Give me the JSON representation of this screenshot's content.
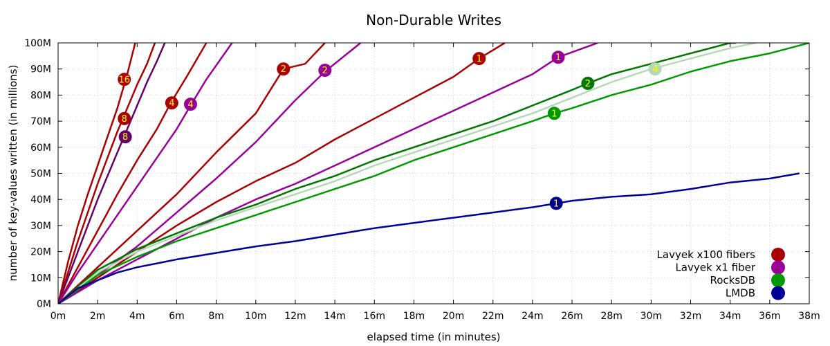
{
  "chart_data": {
    "type": "line",
    "title": "Non-Durable Writes",
    "xlabel": "elapsed time (in minutes)",
    "ylabel": "number of key-values written (in millions)",
    "xlim": [
      0,
      38
    ],
    "ylim": [
      0,
      100
    ],
    "grid": true,
    "legend_position": "bottom-right",
    "x_ticks": [
      {
        "v": 0,
        "label": "0m"
      },
      {
        "v": 2,
        "label": "2m"
      },
      {
        "v": 4,
        "label": "4m"
      },
      {
        "v": 6,
        "label": "6m"
      },
      {
        "v": 8,
        "label": "8m"
      },
      {
        "v": 10,
        "label": "10m"
      },
      {
        "v": 12,
        "label": "12m"
      },
      {
        "v": 14,
        "label": "14m"
      },
      {
        "v": 16,
        "label": "16m"
      },
      {
        "v": 18,
        "label": "18m"
      },
      {
        "v": 20,
        "label": "20m"
      },
      {
        "v": 22,
        "label": "22m"
      },
      {
        "v": 24,
        "label": "24m"
      },
      {
        "v": 26,
        "label": "26m"
      },
      {
        "v": 28,
        "label": "28m"
      },
      {
        "v": 30,
        "label": "30m"
      },
      {
        "v": 32,
        "label": "32m"
      },
      {
        "v": 34,
        "label": "34m"
      },
      {
        "v": 36,
        "label": "36m"
      },
      {
        "v": 38,
        "label": "38m"
      }
    ],
    "y_ticks": [
      {
        "v": 0,
        "label": "0M"
      },
      {
        "v": 10,
        "label": "10M"
      },
      {
        "v": 20,
        "label": "20M"
      },
      {
        "v": 30,
        "label": "30M"
      },
      {
        "v": 40,
        "label": "40M"
      },
      {
        "v": 50,
        "label": "50M"
      },
      {
        "v": 60,
        "label": "60M"
      },
      {
        "v": 70,
        "label": "70M"
      },
      {
        "v": 80,
        "label": "80M"
      },
      {
        "v": 90,
        "label": "90M"
      },
      {
        "v": 100,
        "label": "100M"
      }
    ],
    "legend": [
      {
        "name": "Lavyek x100 fibers",
        "color": "#aa0000"
      },
      {
        "name": "Lavyek x1 fiber",
        "color": "#990099"
      },
      {
        "name": "RocksDB",
        "color": "#009900"
      },
      {
        "name": "LMDB",
        "color": "#000099"
      }
    ],
    "series": [
      {
        "group": "Lavyek x100 fibers",
        "label": "16",
        "color": "#aa0000",
        "points": [
          [
            0,
            0
          ],
          [
            0.5,
            16
          ],
          [
            1,
            30
          ],
          [
            1.5,
            42
          ],
          [
            2,
            53
          ],
          [
            2.5,
            64
          ],
          [
            3,
            75
          ],
          [
            3.5,
            88
          ],
          [
            3.9,
            100
          ]
        ],
        "marker": [
          3.35,
          86
        ]
      },
      {
        "group": "Lavyek x100 fibers",
        "label": "8",
        "color": "#aa0000",
        "points": [
          [
            0,
            0
          ],
          [
            1,
            24
          ],
          [
            2,
            46
          ],
          [
            3,
            66
          ],
          [
            3.5,
            75
          ],
          [
            4,
            84
          ],
          [
            4.5,
            92
          ],
          [
            4.9,
            100
          ]
        ],
        "marker": [
          3.35,
          71
        ]
      },
      {
        "group": "Lavyek x100 fibers",
        "label": "8",
        "color": "#660066",
        "points": [
          [
            0,
            0
          ],
          [
            1,
            20
          ],
          [
            2,
            40
          ],
          [
            3,
            58
          ],
          [
            3.5,
            67
          ],
          [
            4,
            76
          ],
          [
            4.5,
            85
          ],
          [
            5,
            93
          ],
          [
            5.4,
            100
          ]
        ],
        "marker": [
          3.4,
          64
        ]
      },
      {
        "group": "Lavyek x100 fibers",
        "label": "4",
        "color": "#aa0000",
        "points": [
          [
            0,
            0
          ],
          [
            1,
            14
          ],
          [
            2,
            28
          ],
          [
            3,
            42
          ],
          [
            4,
            55
          ],
          [
            5,
            67
          ],
          [
            5.7,
            77
          ],
          [
            6.5,
            87
          ],
          [
            7.5,
            100
          ]
        ],
        "marker": [
          5.75,
          77
        ]
      },
      {
        "group": "Lavyek x1 fiber",
        "label": "4",
        "color": "#990099",
        "points": [
          [
            0,
            0
          ],
          [
            1,
            12
          ],
          [
            2,
            23
          ],
          [
            3,
            34
          ],
          [
            4,
            45
          ],
          [
            5,
            56
          ],
          [
            6,
            67
          ],
          [
            6.7,
            76
          ],
          [
            7.5,
            86
          ],
          [
            8.8,
            100
          ]
        ],
        "marker": [
          6.7,
          76.5
        ]
      },
      {
        "group": "Lavyek x100 fibers",
        "label": "2",
        "color": "#aa0000",
        "points": [
          [
            0,
            0
          ],
          [
            2,
            14
          ],
          [
            4,
            28
          ],
          [
            6,
            42
          ],
          [
            8,
            58
          ],
          [
            10,
            73
          ],
          [
            11.4,
            90
          ],
          [
            12.5,
            92
          ],
          [
            13.5,
            100
          ]
        ],
        "marker": [
          11.4,
          90
        ]
      },
      {
        "group": "Lavyek x1 fiber",
        "label": "2",
        "color": "#990099",
        "points": [
          [
            0,
            0
          ],
          [
            2,
            11
          ],
          [
            4,
            22
          ],
          [
            6,
            35
          ],
          [
            8,
            48
          ],
          [
            10,
            62
          ],
          [
            12,
            78
          ],
          [
            13.5,
            89
          ],
          [
            15.3,
            100
          ]
        ],
        "marker": [
          13.5,
          89.5
        ]
      },
      {
        "group": "Lavyek x100 fibers",
        "label": "1",
        "color": "#aa0000",
        "points": [
          [
            0,
            0
          ],
          [
            2,
            10
          ],
          [
            4,
            20
          ],
          [
            6,
            30
          ],
          [
            8,
            39
          ],
          [
            10,
            47
          ],
          [
            12,
            54
          ],
          [
            14,
            63
          ],
          [
            16,
            71
          ],
          [
            18,
            79
          ],
          [
            20,
            87
          ],
          [
            21.3,
            94
          ],
          [
            22.6,
            100
          ]
        ],
        "marker": [
          21.3,
          94
        ]
      },
      {
        "group": "Lavyek x1 fiber",
        "label": "1",
        "color": "#990099",
        "points": [
          [
            0,
            0
          ],
          [
            2,
            9
          ],
          [
            4,
            17
          ],
          [
            6,
            25
          ],
          [
            8,
            33
          ],
          [
            10,
            40
          ],
          [
            12,
            46
          ],
          [
            14,
            53
          ],
          [
            16,
            60
          ],
          [
            18,
            67
          ],
          [
            20,
            74
          ],
          [
            22,
            81
          ],
          [
            24,
            88
          ],
          [
            25.3,
            94.5
          ],
          [
            27.3,
            100
          ]
        ],
        "marker": [
          25.3,
          94.5
        ]
      },
      {
        "group": "RocksDB",
        "label": "2",
        "color": "#007700",
        "points": [
          [
            0,
            0
          ],
          [
            2,
            13
          ],
          [
            4,
            21
          ],
          [
            6,
            27
          ],
          [
            8,
            33
          ],
          [
            10,
            38
          ],
          [
            12,
            44
          ],
          [
            14,
            49
          ],
          [
            16,
            55
          ],
          [
            18,
            60
          ],
          [
            20,
            65
          ],
          [
            22,
            70
          ],
          [
            24,
            76
          ],
          [
            26,
            82
          ],
          [
            26.8,
            84.5
          ],
          [
            28,
            88
          ],
          [
            30,
            92
          ],
          [
            32,
            96
          ],
          [
            34,
            100
          ],
          [
            34.3,
            100
          ]
        ],
        "marker": [
          26.8,
          84.5
        ]
      },
      {
        "group": "RocksDB",
        "label": "4",
        "color": "#b5d9b5",
        "points": [
          [
            0,
            0
          ],
          [
            2,
            12
          ],
          [
            4,
            20
          ],
          [
            6,
            26
          ],
          [
            8,
            32
          ],
          [
            10,
            37
          ],
          [
            12,
            42
          ],
          [
            14,
            47
          ],
          [
            16,
            53
          ],
          [
            18,
            58
          ],
          [
            20,
            63
          ],
          [
            22,
            68
          ],
          [
            24,
            73
          ],
          [
            26,
            79
          ],
          [
            28,
            85
          ],
          [
            30,
            90
          ],
          [
            32,
            94
          ],
          [
            34,
            98
          ],
          [
            35.3,
            100
          ]
        ],
        "marker": [
          30.2,
          90
        ]
      },
      {
        "group": "RocksDB",
        "label": "1",
        "color": "#009900",
        "points": [
          [
            0,
            0
          ],
          [
            2,
            11
          ],
          [
            4,
            18
          ],
          [
            6,
            24
          ],
          [
            8,
            29
          ],
          [
            10,
            34
          ],
          [
            12,
            39
          ],
          [
            14,
            44
          ],
          [
            16,
            49
          ],
          [
            18,
            55
          ],
          [
            20,
            60
          ],
          [
            22,
            65
          ],
          [
            24,
            70
          ],
          [
            25.1,
            73
          ],
          [
            26,
            75
          ],
          [
            28,
            80
          ],
          [
            30,
            84
          ],
          [
            32,
            89
          ],
          [
            34,
            93
          ],
          [
            36,
            96
          ],
          [
            38,
            100
          ]
        ],
        "marker": [
          25.1,
          73
        ]
      },
      {
        "group": "LMDB",
        "label": "1",
        "color": "#000099",
        "points": [
          [
            0,
            0
          ],
          [
            1,
            6
          ],
          [
            2,
            9
          ],
          [
            3,
            12
          ],
          [
            4,
            14
          ],
          [
            5,
            15.5
          ],
          [
            6,
            17
          ],
          [
            8,
            19.5
          ],
          [
            10,
            22
          ],
          [
            12,
            24
          ],
          [
            14,
            26.5
          ],
          [
            16,
            29
          ],
          [
            18,
            31
          ],
          [
            20,
            33
          ],
          [
            22,
            35
          ],
          [
            24,
            37
          ],
          [
            25.2,
            38.5
          ],
          [
            26,
            39.5
          ],
          [
            28,
            41
          ],
          [
            30,
            42
          ],
          [
            32,
            44
          ],
          [
            34,
            46.5
          ],
          [
            36,
            48
          ],
          [
            37.5,
            50
          ]
        ],
        "marker": [
          25.2,
          38.5
        ]
      }
    ]
  }
}
